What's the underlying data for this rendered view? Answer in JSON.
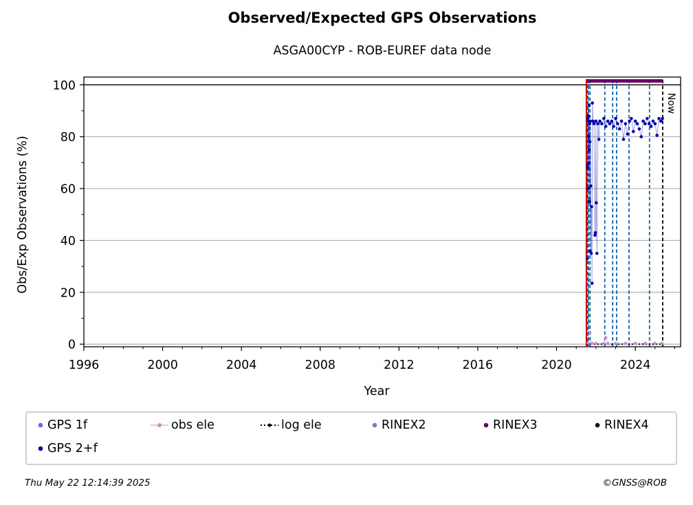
{
  "header": {
    "title": "Observed/Expected GPS Observations",
    "subtitle": "ASGA00CYP - ROB-EUREF data node"
  },
  "footer": {
    "timestamp": "Thu May 22 12:14:39 2025",
    "copyright": "©GNSS@ROB"
  },
  "chart_data": {
    "type": "scatter",
    "title": "Observed/Expected GPS Observations",
    "subtitle": "ASGA00CYP - ROB-EUREF data node",
    "xlabel": "Year",
    "ylabel": "Obs/Exp Observations (%)",
    "xlim": [
      1996,
      2026.3
    ],
    "ylim": [
      -1,
      103
    ],
    "xticks": [
      "1996",
      "2000",
      "2004",
      "2008",
      "2012",
      "2016",
      "2020",
      "2024"
    ],
    "yticks": [
      "0",
      "20",
      "40",
      "60",
      "80",
      "100"
    ],
    "grid": "horizontal",
    "now_label": "Now",
    "now_x": 2025.39,
    "colors": {
      "gps_1f": "#6666ee",
      "gps_2f": "#0000aa",
      "obs_ele": "#cc88cc",
      "log_ele": "#000000",
      "rinex2": "#8877bb",
      "rinex3": "#660066",
      "rinex4": "#220022",
      "equipment_change": "#1060b0",
      "start_line": "#cc0000",
      "start_line2": "#008800"
    },
    "equipment_changes": [
      2021.62,
      2021.7,
      2022.45,
      2022.85,
      2023.05,
      2023.68,
      2024.72
    ],
    "start_year": 2021.55,
    "rinex3_range": [
      2021.55,
      2025.39
    ],
    "rinex3_level": 101.5,
    "legend": [
      {
        "label": "GPS 1f",
        "marker": "dot",
        "color": "#6666ee"
      },
      {
        "label": "obs ele",
        "marker": "line-dot",
        "color": "#cc88cc"
      },
      {
        "label": "log ele",
        "marker": "dotted-line",
        "color": "#000000"
      },
      {
        "label": "RINEX2",
        "marker": "dot",
        "color": "#8877bb"
      },
      {
        "label": "RINEX3",
        "marker": "dot",
        "color": "#660066"
      },
      {
        "label": "RINEX4",
        "marker": "dot",
        "color": "#220022"
      },
      {
        "label": "GPS 2+f",
        "marker": "dot",
        "color": "#0000aa"
      }
    ],
    "series": [
      {
        "name": "GPS 2+f",
        "points": [
          [
            2021.56,
            33
          ],
          [
            2021.57,
            69
          ],
          [
            2021.58,
            87
          ],
          [
            2021.59,
            68
          ],
          [
            2021.6,
            86
          ],
          [
            2021.61,
            60
          ],
          [
            2021.62,
            88
          ],
          [
            2021.63,
            80
          ],
          [
            2021.64,
            70
          ],
          [
            2021.65,
            92
          ],
          [
            2021.66,
            75
          ],
          [
            2021.67,
            55
          ],
          [
            2021.68,
            85
          ],
          [
            2021.69,
            78
          ],
          [
            2021.7,
            36
          ],
          [
            2021.72,
            86
          ],
          [
            2021.74,
            61
          ],
          [
            2021.76,
            35
          ],
          [
            2021.78,
            53
          ],
          [
            2021.8,
            23.5
          ],
          [
            2021.82,
            93
          ],
          [
            2021.85,
            86
          ],
          [
            2021.9,
            85
          ],
          [
            2021.95,
            42
          ],
          [
            2021.97,
            43
          ],
          [
            2022.0,
            86
          ],
          [
            2022.02,
            54.5
          ],
          [
            2022.05,
            35
          ],
          [
            2022.1,
            85
          ],
          [
            2022.15,
            79
          ],
          [
            2022.2,
            86
          ],
          [
            2022.3,
            85
          ],
          [
            2022.4,
            87
          ],
          [
            2022.5,
            84
          ],
          [
            2022.6,
            86
          ],
          [
            2022.7,
            85
          ],
          [
            2022.8,
            86
          ],
          [
            2022.9,
            84
          ],
          [
            2023.0,
            87
          ],
          [
            2023.1,
            85
          ],
          [
            2023.2,
            83
          ],
          [
            2023.3,
            86
          ],
          [
            2023.4,
            79
          ],
          [
            2023.5,
            85
          ],
          [
            2023.6,
            81
          ],
          [
            2023.7,
            86
          ],
          [
            2023.8,
            87
          ],
          [
            2023.9,
            82
          ],
          [
            2024.0,
            86
          ],
          [
            2024.1,
            85
          ],
          [
            2024.2,
            83
          ],
          [
            2024.3,
            80
          ],
          [
            2024.4,
            86
          ],
          [
            2024.5,
            85
          ],
          [
            2024.6,
            87
          ],
          [
            2024.7,
            85
          ],
          [
            2024.8,
            84
          ],
          [
            2024.9,
            86
          ],
          [
            2025.0,
            85
          ],
          [
            2025.1,
            80.5
          ],
          [
            2025.2,
            87
          ],
          [
            2025.3,
            86
          ],
          [
            2025.38,
            87
          ]
        ]
      },
      {
        "name": "obs ele",
        "points": [
          [
            2021.6,
            0.5
          ],
          [
            2021.7,
            4.5
          ],
          [
            2021.8,
            0.3
          ],
          [
            2022.0,
            0.3
          ],
          [
            2022.4,
            0.3
          ],
          [
            2022.5,
            2.5
          ],
          [
            2022.6,
            0.3
          ],
          [
            2023.0,
            0.3
          ],
          [
            2023.5,
            0.3
          ],
          [
            2024.0,
            0.3
          ],
          [
            2024.5,
            0.3
          ],
          [
            2025.0,
            0.3
          ],
          [
            2025.35,
            0.3
          ]
        ]
      }
    ]
  }
}
